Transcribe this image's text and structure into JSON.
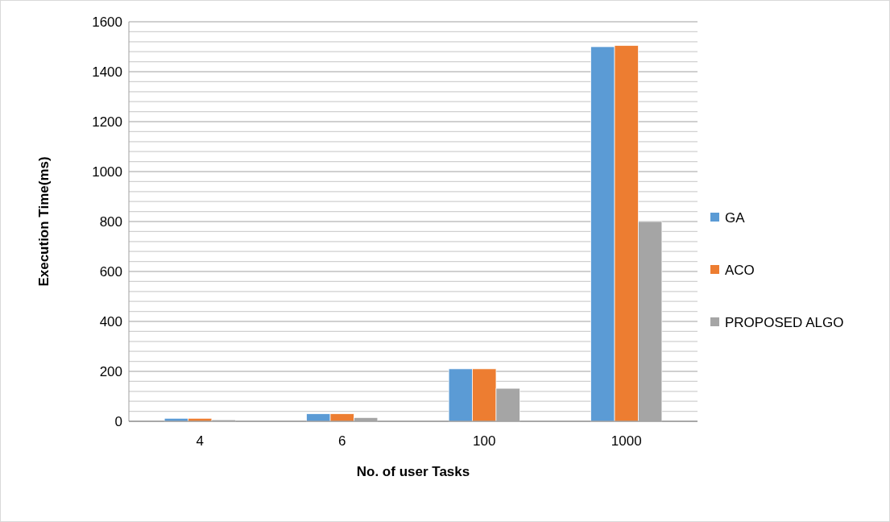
{
  "chart_data": {
    "type": "bar",
    "xlabel": "No. of user Tasks",
    "ylabel": "Execution Time(ms)",
    "categories": [
      "4",
      "6",
      "100",
      "1000"
    ],
    "series": [
      {
        "name": "GA",
        "color": "#5b9bd5",
        "values": [
          12,
          30,
          210,
          1500
        ]
      },
      {
        "name": "ACO",
        "color": "#ed7d31",
        "values": [
          12,
          30,
          210,
          1505
        ]
      },
      {
        "name": "PROPOSED ALGO",
        "color": "#a5a5a5",
        "values": [
          6,
          15,
          132,
          800
        ]
      }
    ],
    "ylim": [
      0,
      1600
    ],
    "yticks": [
      0,
      {
        "value": 40,
        "label": null
      },
      {
        "value": 80,
        "label": null
      },
      {
        "value": 120,
        "label": null
      },
      {
        "value": 160,
        "label": null
      },
      200,
      {
        "value": 240,
        "label": null
      },
      {
        "value": 280,
        "label": null
      },
      {
        "value": 320,
        "label": null
      },
      {
        "value": 360,
        "label": null
      },
      400,
      {
        "value": 440,
        "label": null
      },
      {
        "value": 480,
        "label": null
      },
      {
        "value": 520,
        "label": null
      },
      {
        "value": 560,
        "label": null
      },
      600,
      {
        "value": 640,
        "label": null
      },
      {
        "value": 680,
        "label": null
      },
      {
        "value": 720,
        "label": null
      },
      {
        "value": 760,
        "label": null
      },
      800,
      {
        "value": 840,
        "label": null
      },
      {
        "value": 880,
        "label": null
      },
      {
        "value": 920,
        "label": null
      },
      {
        "value": 960,
        "label": null
      },
      1000,
      {
        "value": 1040,
        "label": null
      },
      {
        "value": 1080,
        "label": null
      },
      {
        "value": 1120,
        "label": null
      },
      {
        "value": 1160,
        "label": null
      },
      1200,
      {
        "value": 1240,
        "label": null
      },
      {
        "value": 1280,
        "label": null
      },
      {
        "value": 1320,
        "label": null
      },
      {
        "value": 1360,
        "label": null
      },
      1400,
      {
        "value": 1440,
        "label": null
      },
      {
        "value": 1480,
        "label": null
      },
      {
        "value": 1520,
        "label": null
      },
      {
        "value": 1560,
        "label": null
      },
      1600
    ],
    "grid": true,
    "legend": "right"
  }
}
